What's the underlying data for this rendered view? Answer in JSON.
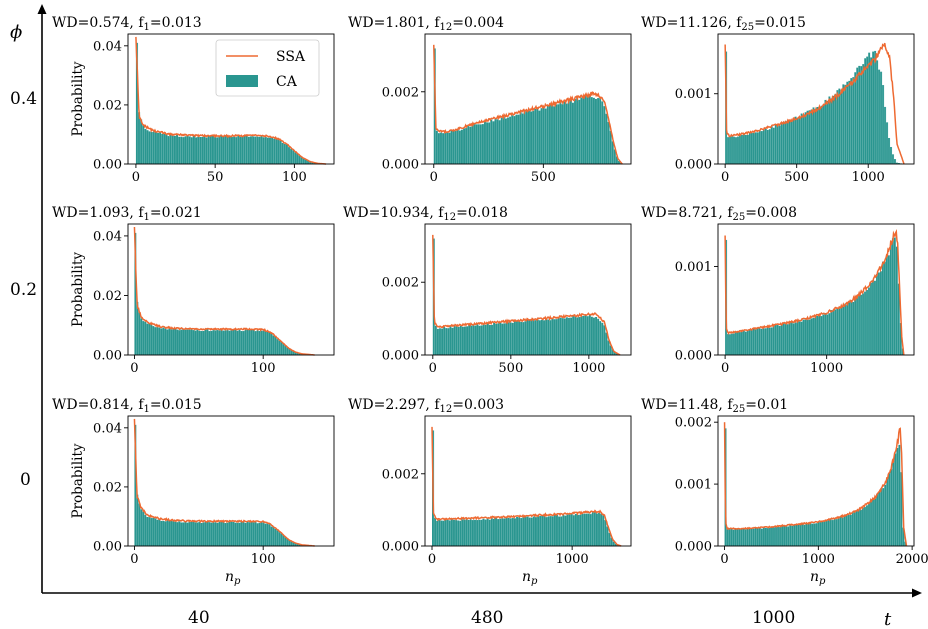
{
  "figure": {
    "outer_axes": {
      "y_symbol": "ϕ",
      "x_symbol": "t",
      "y_levels": [
        "0.4",
        "0.2",
        "0"
      ],
      "x_levels": [
        "40",
        "480",
        "1000"
      ]
    },
    "legend": [
      {
        "name": "SSA",
        "color": "#ee6a32",
        "style": "line"
      },
      {
        "name": "CA",
        "color": "#2a9690",
        "style": "patch"
      }
    ]
  },
  "chart_data": [
    {
      "type": "bar",
      "row": 0,
      "col": 0,
      "title_main": "WD=0.574, f",
      "title_sub": "1",
      "title_tail": "=0.013",
      "ylabel": "Probability",
      "xlabel": "",
      "xlim": [
        -5,
        125
      ],
      "ylim": [
        0,
        0.044
      ],
      "xticks": [
        0,
        50,
        100
      ],
      "yticks": [
        0,
        0.02,
        0.04
      ],
      "ytick_labels": [
        "0.00",
        "0.02",
        "0.04"
      ],
      "x": [
        0,
        2,
        5,
        10,
        20,
        30,
        40,
        50,
        60,
        70,
        80,
        85,
        90,
        95,
        100,
        105,
        110,
        115,
        120
      ],
      "ssa": [
        0.043,
        0.016,
        0.013,
        0.0115,
        0.0102,
        0.0098,
        0.0096,
        0.0095,
        0.0095,
        0.0096,
        0.0096,
        0.0093,
        0.0085,
        0.0068,
        0.0045,
        0.0022,
        0.0008,
        0.0002,
        0.0
      ],
      "ca": [
        0.041,
        0.017,
        0.0125,
        0.011,
        0.0098,
        0.0094,
        0.0092,
        0.0092,
        0.0093,
        0.0094,
        0.0094,
        0.0091,
        0.0083,
        0.0065,
        0.0043,
        0.0021,
        0.0007,
        0.0002,
        0.0
      ],
      "show_legend": true
    },
    {
      "type": "bar",
      "row": 0,
      "col": 1,
      "title_main": "WD=1.801, f",
      "title_sub": "12",
      "title_tail": "=0.004",
      "ylabel": "",
      "xlabel": "",
      "xlim": [
        -40,
        900
      ],
      "ylim": [
        0,
        0.0036
      ],
      "xticks": [
        0,
        500
      ],
      "yticks": [
        0,
        0.002
      ],
      "ytick_labels": [
        "0.000",
        "0.002"
      ],
      "x": [
        0,
        10,
        30,
        60,
        100,
        200,
        300,
        400,
        500,
        600,
        700,
        720,
        750,
        760,
        780,
        800,
        820,
        840,
        860
      ],
      "ssa": [
        0.0033,
        0.00095,
        0.0009,
        0.0009,
        0.00095,
        0.00115,
        0.0013,
        0.00145,
        0.0016,
        0.00175,
        0.0019,
        0.00195,
        0.0019,
        0.00185,
        0.0017,
        0.0012,
        0.0006,
        0.00015,
        0.0
      ],
      "ca": [
        0.0032,
        0.00095,
        0.00085,
        0.00088,
        0.00092,
        0.0011,
        0.00125,
        0.0014,
        0.00155,
        0.0017,
        0.00185,
        0.0019,
        0.00185,
        0.0018,
        0.0016,
        0.0011,
        0.00055,
        0.00012,
        0.0
      ],
      "show_legend": false
    },
    {
      "type": "bar",
      "row": 0,
      "col": 2,
      "title_main": "WD=11.126, f",
      "title_sub": "25",
      "title_tail": "=0.015",
      "ylabel": "",
      "xlabel": "",
      "xlim": [
        -50,
        1320
      ],
      "ylim": [
        0,
        0.00185
      ],
      "xticks": [
        0,
        500,
        1000
      ],
      "yticks": [
        0,
        0.001
      ],
      "ytick_labels": [
        "0.000",
        "0.001"
      ],
      "x": [
        0,
        10,
        30,
        100,
        200,
        300,
        400,
        500,
        600,
        700,
        800,
        900,
        1000,
        1050,
        1100,
        1120,
        1150,
        1180,
        1200,
        1250
      ],
      "ssa": [
        0.0017,
        0.00045,
        0.0004,
        0.00042,
        0.00046,
        0.00052,
        0.00058,
        0.00065,
        0.00073,
        0.00085,
        0.001,
        0.00118,
        0.0014,
        0.0015,
        0.0017,
        0.0017,
        0.0015,
        0.0009,
        0.0003,
        0.0
      ],
      "ca": [
        0.0016,
        0.0004,
        0.00038,
        0.0004,
        0.00045,
        0.0005,
        0.00058,
        0.00066,
        0.00076,
        0.00089,
        0.00106,
        0.00126,
        0.00155,
        0.0016,
        0.0012,
        0.0008,
        0.0003,
        0.0001,
        2e-05,
        0.0
      ],
      "show_legend": false
    },
    {
      "type": "bar",
      "row": 1,
      "col": 0,
      "title_main": "WD=1.093, f",
      "title_sub": "1",
      "title_tail": "=0.021",
      "ylabel": "Probability",
      "xlabel": "",
      "xlim": [
        -5,
        155
      ],
      "ylim": [
        0,
        0.044
      ],
      "xticks": [
        0,
        100
      ],
      "yticks": [
        0,
        0.02,
        0.04
      ],
      "ytick_labels": [
        "0.00",
        "0.02",
        "0.04"
      ],
      "x": [
        0,
        2,
        5,
        10,
        20,
        30,
        40,
        50,
        60,
        70,
        80,
        90,
        100,
        105,
        110,
        115,
        120,
        125,
        130,
        140
      ],
      "ssa": [
        0.043,
        0.017,
        0.013,
        0.011,
        0.0095,
        0.009,
        0.0088,
        0.0087,
        0.0087,
        0.0087,
        0.0087,
        0.0087,
        0.0085,
        0.0078,
        0.0062,
        0.0042,
        0.0022,
        0.001,
        0.0004,
        0.0
      ],
      "ca": [
        0.041,
        0.018,
        0.0125,
        0.0105,
        0.009,
        0.0086,
        0.0084,
        0.0083,
        0.0083,
        0.0083,
        0.0083,
        0.0083,
        0.0082,
        0.0075,
        0.006,
        0.004,
        0.0021,
        0.0009,
        0.0003,
        0.0
      ],
      "show_legend": false
    },
    {
      "type": "bar",
      "row": 1,
      "col": 1,
      "title_main": "WD=10.934, f",
      "title_sub": "12",
      "title_tail": "=0.018",
      "ylabel": "",
      "xlabel": "",
      "xlim": [
        -50,
        1270
      ],
      "ylim": [
        0,
        0.0036
      ],
      "xticks": [
        0,
        500,
        1000
      ],
      "yticks": [
        0,
        0.002
      ],
      "ytick_labels": [
        "0.000",
        "0.002"
      ],
      "x": [
        0,
        10,
        30,
        60,
        100,
        200,
        300,
        400,
        500,
        600,
        700,
        800,
        900,
        1000,
        1050,
        1100,
        1130,
        1160,
        1200
      ],
      "ssa": [
        0.0033,
        0.0009,
        0.00078,
        0.00078,
        0.0008,
        0.00083,
        0.00086,
        0.0009,
        0.00093,
        0.00097,
        0.001,
        0.00104,
        0.00108,
        0.00112,
        0.00112,
        0.0009,
        0.0004,
        0.0001,
        0.0
      ],
      "ca": [
        0.0032,
        0.0009,
        0.00073,
        0.00074,
        0.00076,
        0.00079,
        0.00082,
        0.00086,
        0.0009,
        0.00094,
        0.00097,
        0.001,
        0.00104,
        0.00107,
        0.00105,
        0.0008,
        0.00035,
        0.0001,
        0.0
      ],
      "show_legend": false
    },
    {
      "type": "bar",
      "row": 1,
      "col": 2,
      "title_main": "WD=8.721, f",
      "title_sub": "25",
      "title_tail": "=0.008",
      "ylabel": "",
      "xlabel": "",
      "xlim": [
        -70,
        1860
      ],
      "ylim": [
        0,
        0.00148
      ],
      "xticks": [
        0,
        1000
      ],
      "yticks": [
        0,
        0.001
      ],
      "ytick_labels": [
        "0.000",
        "0.001"
      ],
      "x": [
        0,
        10,
        30,
        100,
        200,
        400,
        600,
        800,
        1000,
        1200,
        1300,
        1400,
        1500,
        1600,
        1650,
        1680,
        1700,
        1720,
        1740,
        1760
      ],
      "ssa": [
        0.00135,
        0.0003,
        0.00025,
        0.00026,
        0.00028,
        0.00032,
        0.00036,
        0.00041,
        0.00048,
        0.00058,
        0.00066,
        0.00077,
        0.00092,
        0.00115,
        0.00132,
        0.0014,
        0.00125,
        0.0007,
        0.0002,
        0.0
      ],
      "ca": [
        0.0013,
        0.0003,
        0.00024,
        0.00025,
        0.00027,
        0.00031,
        0.00035,
        0.0004,
        0.00047,
        0.00057,
        0.00065,
        0.00076,
        0.0009,
        0.00112,
        0.00128,
        0.00135,
        0.0011,
        0.0006,
        0.00015,
        0.0
      ],
      "show_legend": false
    },
    {
      "type": "bar",
      "row": 2,
      "col": 0,
      "title_main": "WD=0.814, f",
      "title_sub": "1",
      "title_tail": "=0.015",
      "ylabel": "Probability",
      "xlabel": "n",
      "xlabel_sub": "p",
      "xlim": [
        -5,
        155
      ],
      "ylim": [
        0,
        0.044
      ],
      "xticks": [
        0,
        100
      ],
      "yticks": [
        0,
        0.02,
        0.04
      ],
      "ytick_labels": [
        "0.00",
        "0.02",
        "0.04"
      ],
      "x": [
        0,
        2,
        5,
        10,
        20,
        30,
        40,
        50,
        60,
        70,
        80,
        90,
        100,
        105,
        110,
        115,
        120,
        125,
        130,
        140
      ],
      "ssa": [
        0.043,
        0.017,
        0.013,
        0.0105,
        0.0092,
        0.0087,
        0.0085,
        0.0084,
        0.0084,
        0.0084,
        0.0084,
        0.0084,
        0.0082,
        0.0075,
        0.006,
        0.004,
        0.0021,
        0.001,
        0.0004,
        0.0
      ],
      "ca": [
        0.041,
        0.018,
        0.0125,
        0.01,
        0.0088,
        0.0083,
        0.0081,
        0.008,
        0.008,
        0.008,
        0.008,
        0.008,
        0.0079,
        0.0072,
        0.0058,
        0.0038,
        0.002,
        0.0009,
        0.0003,
        0.0
      ],
      "show_legend": false
    },
    {
      "type": "bar",
      "row": 2,
      "col": 1,
      "title_main": "WD=2.297, f",
      "title_sub": "12",
      "title_tail": "=0.003",
      "ylabel": "",
      "xlabel": "n",
      "xlabel_sub": "p",
      "xlim": [
        -50,
        1420
      ],
      "ylim": [
        0,
        0.0036
      ],
      "xticks": [
        0,
        1000
      ],
      "yticks": [
        0,
        0.002
      ],
      "ytick_labels": [
        "0.000",
        "0.002"
      ],
      "x": [
        0,
        10,
        30,
        60,
        100,
        200,
        400,
        600,
        800,
        1000,
        1100,
        1150,
        1200,
        1230,
        1260,
        1290,
        1320,
        1350
      ],
      "ssa": [
        0.0033,
        0.0009,
        0.00074,
        0.00074,
        0.00075,
        0.00076,
        0.00079,
        0.00082,
        0.00086,
        0.0009,
        0.00093,
        0.00095,
        0.00095,
        0.00085,
        0.0005,
        0.00018,
        4e-05,
        0.0
      ],
      "ca": [
        0.0032,
        0.0009,
        0.0007,
        0.0007,
        0.00071,
        0.00072,
        0.00075,
        0.00078,
        0.00082,
        0.00086,
        0.00089,
        0.00091,
        0.00092,
        0.0008,
        0.00045,
        0.00015,
        3e-05,
        0.0
      ],
      "show_legend": false
    },
    {
      "type": "bar",
      "row": 2,
      "col": 2,
      "title_main": "WD=11.48, f",
      "title_sub": "25",
      "title_tail": "=0.01",
      "ylabel": "",
      "xlabel": "n",
      "xlabel_sub": "p",
      "xlim": [
        -70,
        2020
      ],
      "ylim": [
        0,
        0.0021
      ],
      "xticks": [
        0,
        1000,
        2000
      ],
      "yticks": [
        0,
        0.001,
        0.002
      ],
      "ytick_labels": [
        "0.000",
        "0.001",
        "0.002"
      ],
      "x": [
        0,
        10,
        30,
        100,
        300,
        500,
        700,
        900,
        1100,
        1300,
        1450,
        1600,
        1700,
        1750,
        1800,
        1850,
        1870,
        1890,
        1910,
        1940
      ],
      "ssa": [
        0.002,
        0.00038,
        0.00028,
        0.00028,
        0.00029,
        0.00031,
        0.00034,
        0.00037,
        0.00042,
        0.0005,
        0.0006,
        0.00078,
        0.00098,
        0.00115,
        0.00138,
        0.0017,
        0.00195,
        0.0014,
        0.0003,
        0.0
      ],
      "ca": [
        0.0019,
        0.00036,
        0.00027,
        0.00027,
        0.00028,
        0.0003,
        0.00033,
        0.00036,
        0.00041,
        0.00049,
        0.00059,
        0.00077,
        0.00097,
        0.00113,
        0.00135,
        0.0016,
        0.0017,
        0.0011,
        0.0002,
        0.0
      ],
      "show_legend": false
    }
  ]
}
